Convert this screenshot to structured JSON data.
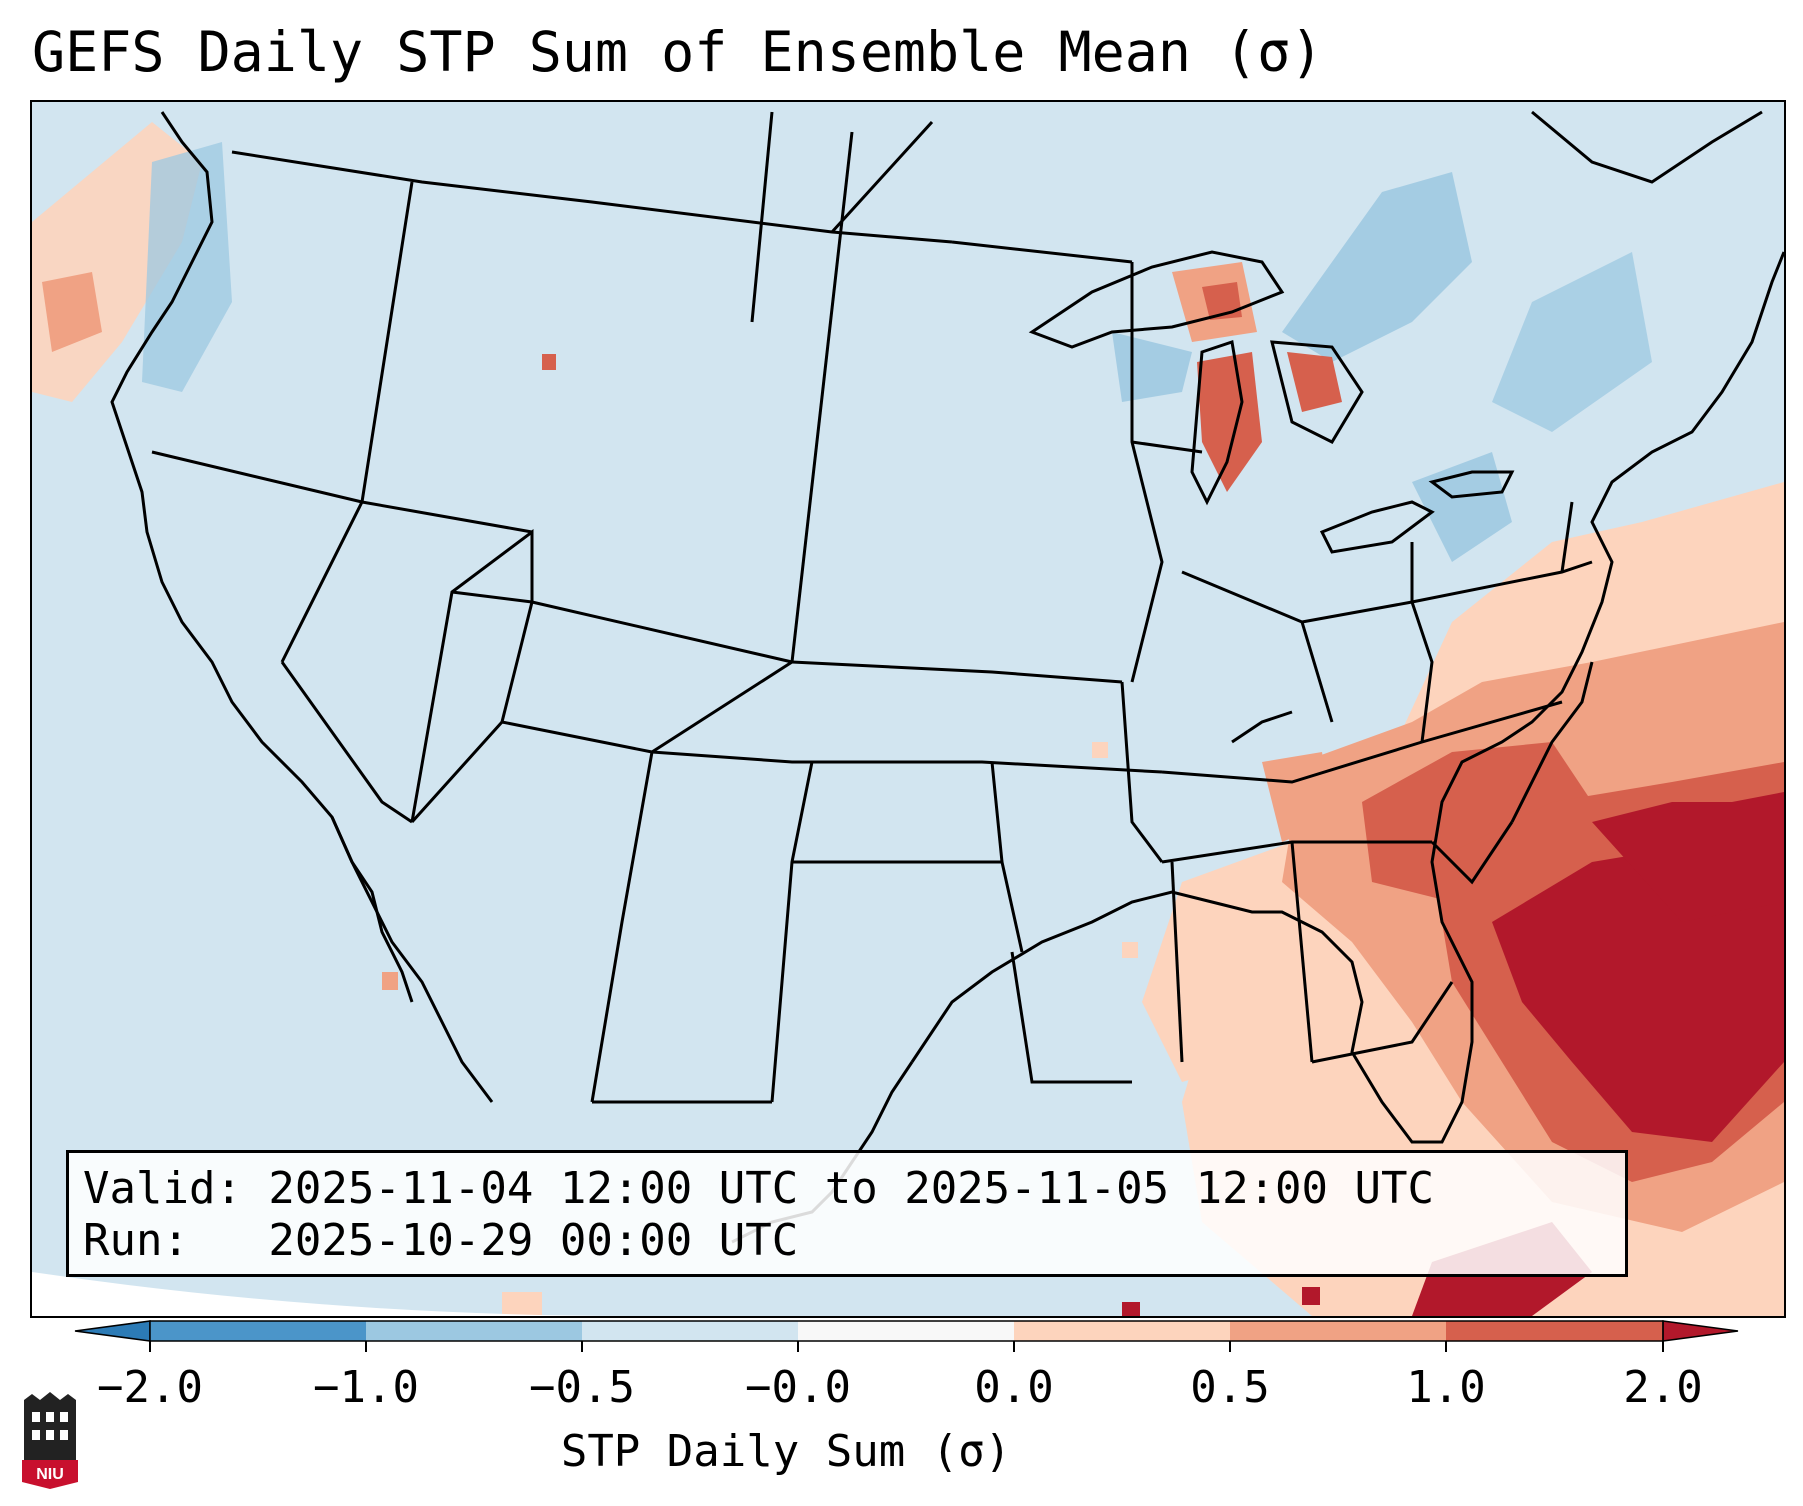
{
  "title": "GEFS Daily STP Sum of Ensemble Mean (σ)",
  "info": {
    "valid_line": "Valid: 2025-11-04 12:00 UTC to 2025-11-05 12:00 UTC",
    "run_line": "Run:   2025-10-29 00:00 UTC"
  },
  "colorbar": {
    "label": "STP Daily Sum (σ)",
    "ticks": [
      "−2.0",
      "−1.0",
      "−0.5",
      "−0.0",
      "0.0",
      "0.5",
      "1.0",
      "2.0"
    ],
    "bins": [
      "#2c7bb6",
      "#4b95c9",
      "#9cc8e1",
      "#d2e5f0",
      "#f8f8f8",
      "#fdd4bd",
      "#f0a284",
      "#d6604d",
      "#b2182b"
    ]
  },
  "colors": {
    "background": "#d2e5f0",
    "strong_positive": "#b2182b",
    "positive": "#d6604d",
    "weak_positive": "#f0a284",
    "slight_positive": "#fdd4bd",
    "slight_negative": "#9cc8e1"
  },
  "logo": {
    "text": "NIU",
    "name": "niu-logo-icon"
  }
}
